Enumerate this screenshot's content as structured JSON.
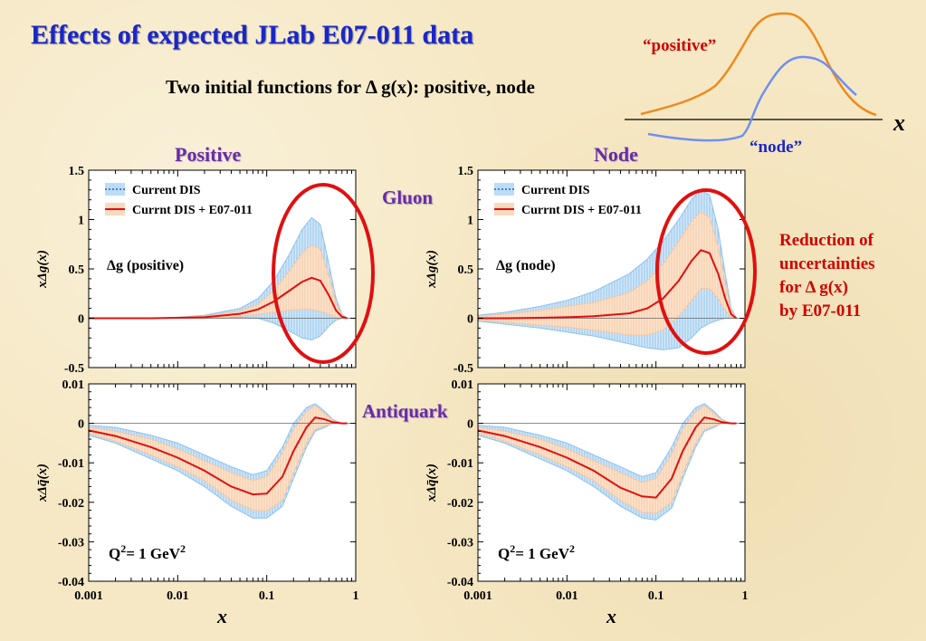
{
  "title": "Effects of expected JLab E07-011 data",
  "subtitle": "Two initial functions for Δ g(x): positive, node",
  "note": {
    "lines": [
      "Reduction of",
      "uncertainties",
      "for Δ g(x)",
      "by E07-011"
    ]
  },
  "side_labels": {
    "gluon": "Gluon",
    "antiquark": "Antiquark"
  },
  "inset": {
    "positive_label": "“positive”",
    "node_label": "“node”",
    "x_label": "x",
    "colors": {
      "positive": "#ee8a1e",
      "node": "#6f8ff0"
    }
  },
  "colors": {
    "current_band": "#8fc2ee",
    "e07_band": "#f6c7a0",
    "central": "#e01010",
    "ellipse": "#e01010"
  },
  "chart_data": [
    {
      "type": "area",
      "panel_title": "Positive",
      "annotation": "Δg (positive)",
      "ylabel": "xΔg(x)",
      "xlabel": "",
      "xscale": "log",
      "xlim": [
        0.001,
        1
      ],
      "ylim": [
        -0.5,
        1.5
      ],
      "yticks": [
        "-0.5",
        "0",
        "0.5",
        "1",
        "1.5"
      ],
      "xticks": [],
      "legend": [
        "Current DIS",
        "Currnt DIS + E07-011"
      ],
      "legend_position": "top-left",
      "x": [
        0.001,
        0.002,
        0.005,
        0.01,
        0.02,
        0.05,
        0.08,
        0.12,
        0.18,
        0.25,
        0.32,
        0.4,
        0.5,
        0.6,
        0.7,
        0.8
      ],
      "series": [
        {
          "name": "Current DIS upper",
          "values": [
            0.0,
            0.0,
            0.0,
            0.01,
            0.03,
            0.1,
            0.2,
            0.38,
            0.65,
            0.9,
            1.02,
            0.95,
            0.55,
            0.2,
            0.04,
            0.0
          ]
        },
        {
          "name": "Current DIS lower",
          "values": [
            0.0,
            0.0,
            0.0,
            0.0,
            0.0,
            0.01,
            0.0,
            -0.05,
            -0.13,
            -0.2,
            -0.22,
            -0.18,
            -0.08,
            -0.02,
            0.0,
            0.0
          ]
        },
        {
          "name": "Currnt DIS + E07-011 upper",
          "values": [
            0.0,
            0.0,
            0.0,
            0.01,
            0.02,
            0.07,
            0.14,
            0.28,
            0.48,
            0.66,
            0.74,
            0.7,
            0.42,
            0.15,
            0.03,
            0.0
          ]
        },
        {
          "name": "Currnt DIS + E07-011 lower",
          "values": [
            0.0,
            0.0,
            0.0,
            0.0,
            0.0,
            0.02,
            0.04,
            0.06,
            0.08,
            0.09,
            0.09,
            0.07,
            0.04,
            0.01,
            0.0,
            0.0
          ]
        },
        {
          "name": "central",
          "values": [
            0.0,
            0.0,
            0.0,
            0.005,
            0.01,
            0.045,
            0.09,
            0.17,
            0.28,
            0.37,
            0.41,
            0.38,
            0.23,
            0.08,
            0.015,
            0.0
          ]
        }
      ]
    },
    {
      "type": "area",
      "panel_title": "Node",
      "annotation": "Δg (node)",
      "ylabel": "xΔg(x)",
      "xlabel": "",
      "xscale": "log",
      "xlim": [
        0.001,
        1
      ],
      "ylim": [
        -0.5,
        1.5
      ],
      "yticks": [
        "-0.5",
        "0",
        "0.5",
        "1",
        "1.5"
      ],
      "xticks": [],
      "legend": [
        "Current DIS",
        "Currnt DIS + E07-011"
      ],
      "legend_position": "top-left",
      "x": [
        0.001,
        0.002,
        0.005,
        0.01,
        0.02,
        0.05,
        0.08,
        0.12,
        0.18,
        0.25,
        0.32,
        0.4,
        0.5,
        0.6,
        0.7,
        0.8
      ],
      "series": [
        {
          "name": "Current DIS upper",
          "values": [
            0.03,
            0.06,
            0.12,
            0.18,
            0.27,
            0.45,
            0.6,
            0.78,
            1.0,
            1.2,
            1.3,
            1.25,
            0.9,
            0.45,
            0.1,
            0.0
          ]
        },
        {
          "name": "Current DIS lower",
          "values": [
            -0.03,
            -0.06,
            -0.1,
            -0.14,
            -0.18,
            -0.26,
            -0.3,
            -0.32,
            -0.3,
            -0.2,
            -0.1,
            -0.05,
            -0.02,
            0.0,
            0.0,
            0.0
          ]
        },
        {
          "name": "Currnt DIS + E07-011 upper",
          "values": [
            0.02,
            0.04,
            0.08,
            0.12,
            0.16,
            0.26,
            0.38,
            0.55,
            0.78,
            0.98,
            1.08,
            1.02,
            0.72,
            0.35,
            0.08,
            0.0
          ]
        },
        {
          "name": "Currnt DIS + E07-011 lower",
          "values": [
            -0.02,
            -0.04,
            -0.07,
            -0.09,
            -0.12,
            -0.17,
            -0.17,
            -0.12,
            0.02,
            0.18,
            0.3,
            0.3,
            0.2,
            0.08,
            0.01,
            0.0
          ]
        },
        {
          "name": "central",
          "values": [
            0.0,
            0.0,
            0.005,
            0.01,
            0.02,
            0.05,
            0.1,
            0.2,
            0.38,
            0.58,
            0.69,
            0.66,
            0.45,
            0.2,
            0.04,
            0.0
          ]
        }
      ]
    },
    {
      "type": "area",
      "annotation_base": "Q",
      "annotation_sup": "2",
      "annotation_rest": "= 1 GeV",
      "annotation_sup2": "2",
      "ylabel": "xΔq̄(x)",
      "xlabel": "x",
      "xscale": "log",
      "xlim": [
        0.001,
        1
      ],
      "ylim": [
        -0.04,
        0.01
      ],
      "yticks": [
        "-0.04",
        "-0.03",
        "-0.02",
        "-0.01",
        "0",
        "0.01"
      ],
      "xticks": [
        "0.001",
        "0.01",
        "0.1",
        "1"
      ],
      "x": [
        0.001,
        0.002,
        0.005,
        0.01,
        0.02,
        0.04,
        0.07,
        0.1,
        0.15,
        0.2,
        0.28,
        0.35,
        0.45,
        0.55,
        0.7,
        0.8
      ],
      "series": [
        {
          "name": "Current DIS upper",
          "values": [
            -0.0005,
            -0.001,
            -0.003,
            -0.005,
            -0.008,
            -0.011,
            -0.013,
            -0.012,
            -0.006,
            0.0,
            0.004,
            0.005,
            0.003,
            0.001,
            0.0,
            0.0
          ]
        },
        {
          "name": "Current DIS lower",
          "values": [
            -0.003,
            -0.005,
            -0.009,
            -0.012,
            -0.016,
            -0.021,
            -0.024,
            -0.024,
            -0.021,
            -0.014,
            -0.006,
            -0.002,
            -0.001,
            0.0,
            0.0,
            0.0
          ]
        },
        {
          "name": "Currnt DIS + E07-011 upper",
          "values": [
            -0.001,
            -0.002,
            -0.004,
            -0.0065,
            -0.0095,
            -0.0125,
            -0.0145,
            -0.0135,
            -0.0075,
            -0.0015,
            0.003,
            0.0045,
            0.0025,
            0.0008,
            0.0,
            0.0
          ]
        },
        {
          "name": "Currnt DIS + E07-011 lower",
          "values": [
            -0.0025,
            -0.0045,
            -0.008,
            -0.011,
            -0.0145,
            -0.0195,
            -0.022,
            -0.0222,
            -0.0195,
            -0.0125,
            -0.005,
            -0.0015,
            -0.0006,
            0.0,
            0.0,
            0.0
          ]
        },
        {
          "name": "central",
          "values": [
            -0.0018,
            -0.0032,
            -0.006,
            -0.0087,
            -0.012,
            -0.016,
            -0.018,
            -0.0178,
            -0.0135,
            -0.007,
            -0.001,
            0.0015,
            0.001,
            0.0003,
            0.0,
            0.0
          ]
        }
      ]
    },
    {
      "type": "area",
      "annotation_base": "Q",
      "annotation_sup": "2",
      "annotation_rest": "= 1 GeV",
      "annotation_sup2": "2",
      "ylabel": "xΔq̄(x)",
      "xlabel": "x",
      "xscale": "log",
      "xlim": [
        0.001,
        1
      ],
      "ylim": [
        -0.04,
        0.01
      ],
      "yticks": [
        "-0.04",
        "-0.03",
        "-0.02",
        "-0.01",
        "0",
        "0.01"
      ],
      "xticks": [
        "0.001",
        "0.01",
        "0.1",
        "1"
      ],
      "x": [
        0.001,
        0.002,
        0.005,
        0.01,
        0.02,
        0.04,
        0.07,
        0.1,
        0.15,
        0.2,
        0.28,
        0.35,
        0.45,
        0.55,
        0.7,
        0.8
      ],
      "series": [
        {
          "name": "Current DIS upper",
          "values": [
            -0.0005,
            -0.001,
            -0.003,
            -0.005,
            -0.008,
            -0.011,
            -0.0135,
            -0.0125,
            -0.006,
            0.0,
            0.004,
            0.005,
            0.003,
            0.001,
            0.0,
            0.0
          ]
        },
        {
          "name": "Current DIS lower",
          "values": [
            -0.003,
            -0.005,
            -0.009,
            -0.012,
            -0.016,
            -0.021,
            -0.024,
            -0.0245,
            -0.0215,
            -0.014,
            -0.006,
            -0.002,
            -0.001,
            0.0,
            0.0,
            0.0
          ]
        },
        {
          "name": "Currnt DIS + E07-011 upper",
          "values": [
            -0.001,
            -0.002,
            -0.004,
            -0.0065,
            -0.0095,
            -0.0125,
            -0.015,
            -0.014,
            -0.0078,
            -0.0015,
            0.003,
            0.0045,
            0.0025,
            0.0008,
            0.0,
            0.0
          ]
        },
        {
          "name": "Currnt DIS + E07-011 lower",
          "values": [
            -0.0025,
            -0.0045,
            -0.008,
            -0.011,
            -0.0145,
            -0.0195,
            -0.0225,
            -0.0228,
            -0.02,
            -0.0128,
            -0.005,
            -0.0015,
            -0.0006,
            0.0,
            0.0,
            0.0
          ]
        },
        {
          "name": "central",
          "values": [
            -0.0018,
            -0.0032,
            -0.006,
            -0.0087,
            -0.012,
            -0.0163,
            -0.0185,
            -0.0188,
            -0.014,
            -0.007,
            -0.001,
            0.0015,
            0.001,
            0.0003,
            0.0,
            0.0
          ]
        }
      ]
    }
  ]
}
